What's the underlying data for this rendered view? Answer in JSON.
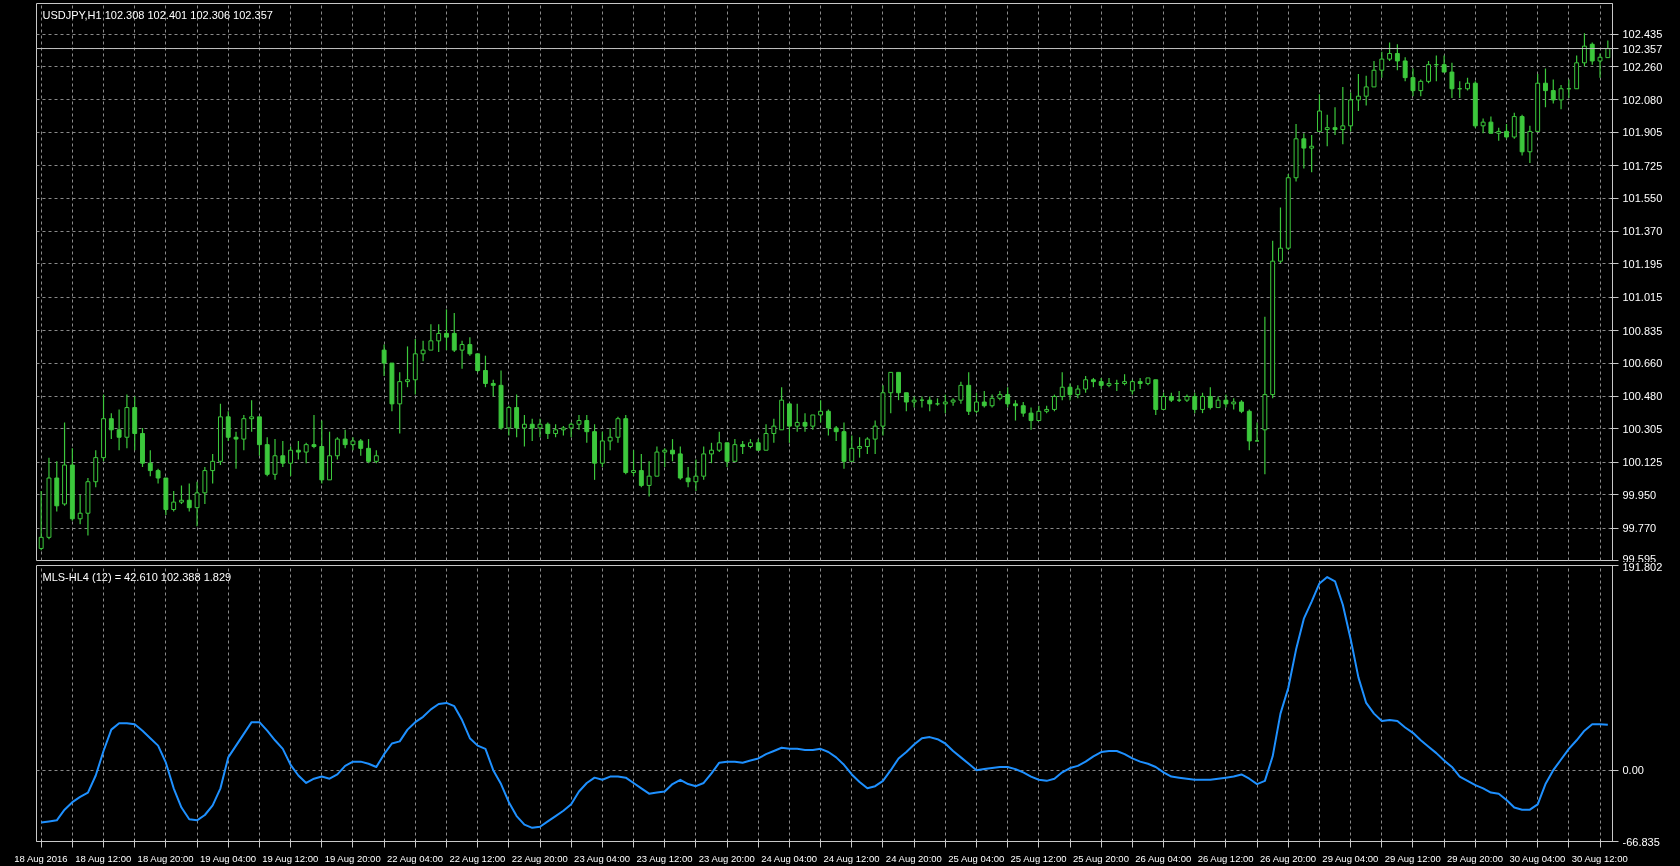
{
  "chart_data": [
    {
      "type": "candlestick",
      "title": "USDJPY,H1 102.308 102.401 102.306 102.357",
      "categories": [
        null,
        null,
        null,
        null,
        null,
        null,
        null,
        null,
        null,
        null,
        null,
        null,
        null,
        null,
        null,
        null,
        null,
        null,
        null,
        null,
        null,
        null,
        null,
        null,
        null,
        null,
        null,
        null,
        null,
        null,
        null,
        null,
        null,
        null,
        null,
        null,
        null,
        null,
        null,
        null,
        null,
        null,
        null,
        null,
        null,
        null,
        null,
        null,
        null,
        null,
        null,
        null,
        null,
        null,
        null,
        null,
        null,
        null,
        null,
        null,
        null,
        null,
        null,
        null,
        null,
        null,
        null,
        null,
        null,
        null,
        null,
        null,
        null,
        null,
        null,
        null,
        null,
        null,
        null,
        null,
        null,
        null,
        null,
        null,
        null,
        null,
        null,
        null,
        null,
        null,
        null,
        null,
        null,
        null,
        null,
        null,
        null,
        null,
        null,
        null,
        null,
        null,
        null,
        null,
        null,
        null,
        null,
        null,
        null,
        null,
        null,
        null,
        null,
        null,
        null,
        null,
        null,
        null,
        null,
        null,
        null,
        null,
        null,
        null,
        null,
        null,
        null,
        null,
        null,
        null,
        null,
        null,
        null,
        null,
        null,
        null,
        null,
        null,
        null,
        null,
        null,
        null,
        null,
        null,
        null,
        null,
        null,
        null,
        null,
        null,
        null,
        null,
        null,
        null,
        null,
        null,
        null,
        null,
        null,
        null,
        null,
        null,
        null,
        null,
        null,
        null,
        null,
        null,
        null,
        null,
        null,
        null,
        null,
        null,
        null,
        null,
        null,
        null,
        null,
        null,
        null,
        null,
        null,
        null,
        null,
        null,
        null,
        null,
        null,
        null,
        null,
        null,
        null,
        null,
        null,
        null,
        null,
        null,
        null,
        null,
        null,
        null
      ],
      "series": [
        {
          "color": "#3cc83c",
          "ohlc": [
            [
              99.66,
              99.97,
              99.65,
              99.72
            ],
            [
              99.72,
              100.15,
              99.71,
              100.04
            ],
            [
              100.04,
              100.13,
              99.86,
              99.89
            ],
            [
              99.9,
              100.34,
              99.89,
              100.11
            ],
            [
              100.11,
              100.2,
              99.81,
              99.82
            ],
            [
              99.82,
              99.95,
              99.79,
              99.85
            ],
            [
              99.85,
              100.04,
              99.73,
              100.02
            ],
            [
              100.02,
              100.19,
              99.99,
              100.15
            ],
            [
              100.15,
              100.49,
              100.13,
              100.36
            ],
            [
              100.36,
              100.39,
              100.25,
              100.3
            ],
            [
              100.3,
              100.41,
              100.19,
              100.26
            ],
            [
              100.26,
              100.49,
              100.2,
              100.42
            ],
            [
              100.42,
              100.48,
              100.19,
              100.28
            ],
            [
              100.28,
              100.31,
              100.1,
              100.12
            ],
            [
              100.12,
              100.19,
              100.05,
              100.08
            ],
            [
              100.08,
              100.09,
              100.01,
              100.04
            ],
            [
              100.04,
              100.04,
              99.84,
              99.87
            ],
            [
              99.87,
              99.97,
              99.86,
              99.91
            ],
            [
              99.91,
              100.0,
              99.9,
              99.92
            ],
            [
              99.92,
              100.01,
              99.86,
              99.88
            ],
            [
              99.88,
              100.02,
              99.78,
              99.96
            ],
            [
              99.96,
              100.1,
              99.9,
              100.08
            ],
            [
              100.08,
              100.17,
              100.01,
              100.13
            ],
            [
              100.13,
              100.44,
              100.11,
              100.37
            ],
            [
              100.37,
              100.4,
              100.24,
              100.26
            ],
            [
              100.26,
              100.29,
              100.09,
              100.25
            ],
            [
              100.25,
              100.38,
              100.19,
              100.36
            ],
            [
              100.36,
              100.46,
              100.29,
              100.37
            ],
            [
              100.37,
              100.37,
              100.16,
              100.22
            ],
            [
              100.22,
              100.26,
              100.05,
              100.06
            ],
            [
              100.06,
              100.25,
              100.03,
              100.16
            ],
            [
              100.16,
              100.24,
              100.1,
              100.12
            ],
            [
              100.12,
              100.21,
              100.05,
              100.19
            ],
            [
              100.19,
              100.24,
              100.14,
              100.18
            ],
            [
              100.18,
              100.23,
              100.12,
              100.22
            ],
            [
              100.22,
              100.38,
              100.2,
              100.21
            ],
            [
              100.21,
              100.35,
              100.01,
              100.03
            ],
            [
              100.03,
              100.29,
              100.03,
              100.16
            ],
            [
              100.16,
              100.26,
              100.14,
              100.25
            ],
            [
              100.25,
              100.3,
              100.2,
              100.22
            ],
            [
              100.22,
              100.26,
              100.19,
              100.24
            ],
            [
              100.24,
              100.25,
              100.16,
              100.2
            ],
            [
              100.2,
              100.25,
              100.12,
              100.13
            ],
            [
              100.13,
              100.19,
              100.12,
              100.16
            ],
            [
              100.73,
              100.76,
              100.59,
              100.66
            ],
            [
              100.66,
              100.66,
              100.4,
              100.44
            ],
            [
              100.44,
              100.61,
              100.28,
              100.56
            ],
            [
              100.56,
              100.75,
              100.53,
              100.57
            ],
            [
              100.57,
              100.79,
              100.49,
              100.71
            ],
            [
              100.71,
              100.78,
              100.67,
              100.73
            ],
            [
              100.73,
              100.87,
              100.73,
              100.78
            ],
            [
              100.78,
              100.87,
              100.72,
              100.82
            ],
            [
              100.82,
              100.95,
              100.73,
              100.8
            ],
            [
              100.82,
              100.93,
              100.72,
              100.73
            ],
            [
              100.73,
              100.78,
              100.63,
              100.76
            ],
            [
              100.76,
              100.8,
              100.7,
              100.71
            ],
            [
              100.71,
              100.71,
              100.61,
              100.62
            ],
            [
              100.62,
              100.7,
              100.53,
              100.55
            ],
            [
              100.55,
              100.57,
              100.48,
              100.54
            ],
            [
              100.54,
              100.62,
              100.3,
              100.31
            ],
            [
              100.31,
              100.43,
              100.27,
              100.42
            ],
            [
              100.42,
              100.49,
              100.26,
              100.31
            ],
            [
              100.31,
              100.38,
              100.21,
              100.33
            ],
            [
              100.33,
              100.36,
              100.24,
              100.31
            ],
            [
              100.31,
              100.36,
              100.26,
              100.33
            ],
            [
              100.33,
              100.34,
              100.25,
              100.28
            ],
            [
              100.28,
              100.33,
              100.26,
              100.3
            ],
            [
              100.3,
              100.32,
              100.27,
              100.31
            ],
            [
              100.31,
              100.34,
              100.26,
              100.33
            ],
            [
              100.33,
              100.38,
              100.3,
              100.35
            ],
            [
              100.35,
              100.38,
              100.23,
              100.29
            ],
            [
              100.29,
              100.33,
              100.03,
              100.12
            ],
            [
              100.12,
              100.29,
              100.1,
              100.24
            ],
            [
              100.24,
              100.31,
              100.19,
              100.26
            ],
            [
              100.26,
              100.37,
              100.23,
              100.36
            ],
            [
              100.36,
              100.38,
              100.06,
              100.07
            ],
            [
              100.07,
              100.19,
              100.05,
              100.08
            ],
            [
              100.08,
              100.17,
              99.99,
              100.0
            ],
            [
              100.0,
              100.13,
              99.94,
              100.05
            ],
            [
              100.05,
              100.21,
              100.05,
              100.18
            ],
            [
              100.18,
              100.2,
              100.1,
              100.19
            ],
            [
              100.19,
              100.25,
              100.13,
              100.17
            ],
            [
              100.17,
              100.21,
              100.03,
              100.04
            ],
            [
              100.04,
              100.1,
              99.99,
              100.02
            ],
            [
              100.02,
              100.14,
              99.97,
              100.05
            ],
            [
              100.05,
              100.21,
              100.03,
              100.17
            ],
            [
              100.17,
              100.23,
              100.12,
              100.19
            ],
            [
              100.19,
              100.29,
              100.18,
              100.23
            ],
            [
              100.23,
              100.23,
              100.1,
              100.13
            ],
            [
              100.13,
              100.25,
              100.13,
              100.22
            ],
            [
              100.22,
              100.24,
              100.17,
              100.21
            ],
            [
              100.21,
              100.25,
              100.2,
              100.23
            ],
            [
              100.23,
              100.25,
              100.19,
              100.19
            ],
            [
              100.19,
              100.33,
              100.19,
              100.28
            ],
            [
              100.28,
              100.36,
              100.23,
              100.32
            ],
            [
              100.3,
              100.53,
              100.3,
              100.46
            ],
            [
              100.44,
              100.44,
              100.23,
              100.32
            ],
            [
              100.32,
              100.44,
              100.29,
              100.34
            ],
            [
              100.34,
              100.39,
              100.29,
              100.32
            ],
            [
              100.32,
              100.38,
              100.3,
              100.38
            ],
            [
              100.38,
              100.46,
              100.34,
              100.4
            ],
            [
              100.4,
              100.41,
              100.27,
              100.31
            ],
            [
              100.31,
              100.32,
              100.24,
              100.29
            ],
            [
              100.29,
              100.34,
              100.09,
              100.13
            ],
            [
              100.13,
              100.27,
              100.13,
              100.2
            ],
            [
              100.2,
              100.26,
              100.15,
              100.21
            ],
            [
              100.21,
              100.26,
              100.17,
              100.25
            ],
            [
              100.25,
              100.35,
              100.17,
              100.32
            ],
            [
              100.32,
              100.54,
              100.27,
              100.5
            ],
            [
              100.5,
              100.61,
              100.39,
              100.61
            ],
            [
              100.61,
              100.61,
              100.46,
              100.5
            ],
            [
              100.5,
              100.5,
              100.4,
              100.45
            ],
            [
              100.45,
              100.48,
              100.42,
              100.46
            ],
            [
              100.46,
              100.48,
              100.42,
              100.46
            ],
            [
              100.46,
              100.48,
              100.4,
              100.44
            ],
            [
              100.44,
              100.47,
              100.43,
              100.44
            ],
            [
              100.44,
              100.49,
              100.39,
              100.45
            ],
            [
              100.45,
              100.47,
              100.43,
              100.46
            ],
            [
              100.46,
              100.56,
              100.44,
              100.54
            ],
            [
              100.54,
              100.61,
              100.38,
              100.4
            ],
            [
              100.4,
              100.5,
              100.39,
              100.45
            ],
            [
              100.45,
              100.51,
              100.42,
              100.43
            ],
            [
              100.43,
              100.49,
              100.42,
              100.47
            ],
            [
              100.47,
              100.51,
              100.46,
              100.49
            ],
            [
              100.49,
              100.53,
              100.42,
              100.44
            ],
            [
              100.44,
              100.46,
              100.35,
              100.43
            ],
            [
              100.43,
              100.45,
              100.37,
              100.39
            ],
            [
              100.39,
              100.42,
              100.3,
              100.35
            ],
            [
              100.35,
              100.43,
              100.35,
              100.4
            ],
            [
              100.4,
              100.43,
              100.39,
              100.41
            ],
            [
              100.41,
              100.49,
              100.4,
              100.48
            ],
            [
              100.48,
              100.61,
              100.46,
              100.53
            ],
            [
              100.53,
              100.55,
              100.46,
              100.49
            ],
            [
              100.49,
              100.54,
              100.47,
              100.52
            ],
            [
              100.52,
              100.59,
              100.5,
              100.57
            ],
            [
              100.57,
              100.58,
              100.53,
              100.56
            ],
            [
              100.56,
              100.58,
              100.52,
              100.54
            ],
            [
              100.54,
              100.58,
              100.53,
              100.55
            ],
            [
              100.55,
              100.57,
              100.51,
              100.55
            ],
            [
              100.55,
              100.6,
              100.54,
              100.56
            ],
            [
              100.51,
              100.57,
              100.49,
              100.56
            ],
            [
              100.56,
              100.58,
              100.52,
              100.55
            ],
            [
              100.55,
              100.58,
              100.54,
              100.58
            ],
            [
              100.57,
              100.57,
              100.38,
              100.41
            ],
            [
              100.41,
              100.5,
              100.41,
              100.48
            ],
            [
              100.48,
              100.5,
              100.45,
              100.46
            ],
            [
              100.46,
              100.51,
              100.45,
              100.46
            ],
            [
              100.46,
              100.49,
              100.45,
              100.48
            ],
            [
              100.48,
              100.5,
              100.39,
              100.41
            ],
            [
              100.41,
              100.5,
              100.39,
              100.48
            ],
            [
              100.48,
              100.53,
              100.41,
              100.42
            ],
            [
              100.42,
              100.48,
              100.42,
              100.46
            ],
            [
              100.46,
              100.49,
              100.42,
              100.44
            ],
            [
              100.44,
              100.47,
              100.41,
              100.45
            ],
            [
              100.45,
              100.46,
              100.39,
              100.4
            ],
            [
              100.4,
              100.41,
              100.19,
              100.24
            ],
            [
              100.24,
              100.34,
              100.24,
              100.24
            ],
            [
              100.3,
              100.91,
              100.06,
              100.49
            ],
            [
              100.49,
              101.32,
              100.47,
              101.21
            ],
            [
              101.21,
              101.5,
              101.2,
              101.28
            ],
            [
              101.28,
              101.68,
              101.27,
              101.66
            ],
            [
              101.66,
              101.95,
              101.64,
              101.87
            ],
            [
              101.87,
              101.9,
              101.71,
              101.82
            ],
            [
              101.82,
              101.89,
              101.69,
              101.83
            ],
            [
              101.91,
              102.11,
              101.91,
              102.02
            ],
            [
              101.92,
              102.0,
              101.83,
              101.93
            ],
            [
              101.93,
              102.04,
              101.89,
              101.92
            ],
            [
              101.92,
              102.15,
              101.84,
              101.94
            ],
            [
              101.94,
              102.12,
              101.91,
              102.08
            ],
            [
              102.08,
              102.22,
              102.02,
              102.1
            ],
            [
              102.1,
              102.21,
              102.05,
              102.15
            ],
            [
              102.15,
              102.29,
              102.15,
              102.24
            ],
            [
              102.24,
              102.34,
              102.2,
              102.3
            ],
            [
              102.3,
              102.39,
              102.29,
              102.33
            ],
            [
              102.33,
              102.38,
              102.24,
              102.29
            ],
            [
              102.29,
              102.31,
              102.18,
              102.2
            ],
            [
              102.2,
              102.25,
              102.1,
              102.13
            ],
            [
              102.13,
              102.19,
              102.1,
              102.18
            ],
            [
              102.18,
              102.29,
              102.17,
              102.27
            ],
            [
              102.27,
              102.32,
              102.18,
              102.27
            ],
            [
              102.27,
              102.32,
              102.23,
              102.23
            ],
            [
              102.23,
              102.28,
              102.09,
              102.14
            ],
            [
              102.14,
              102.18,
              102.09,
              102.14
            ],
            [
              102.14,
              102.2,
              102.13,
              102.17
            ],
            [
              102.17,
              102.18,
              101.93,
              101.94
            ],
            [
              101.94,
              101.98,
              101.9,
              101.96
            ],
            [
              101.96,
              101.99,
              101.9,
              101.9
            ],
            [
              101.9,
              101.93,
              101.86,
              101.91
            ],
            [
              101.91,
              101.95,
              101.87,
              101.88
            ],
            [
              101.88,
              102.01,
              101.87,
              101.99
            ],
            [
              101.99,
              102.0,
              101.78,
              101.8
            ],
            [
              101.8,
              101.94,
              101.74,
              101.91
            ],
            [
              101.91,
              102.22,
              101.91,
              102.17
            ],
            [
              102.17,
              102.25,
              102.04,
              102.13
            ],
            [
              102.13,
              102.19,
              102.06,
              102.08
            ],
            [
              102.08,
              102.16,
              102.03,
              102.14
            ],
            [
              102.14,
              102.19,
              102.09,
              102.14
            ],
            [
              102.14,
              102.32,
              102.14,
              102.28
            ],
            [
              102.28,
              102.44,
              102.26,
              102.37
            ],
            [
              102.38,
              102.39,
              102.27,
              102.29
            ],
            [
              102.29,
              102.33,
              102.2,
              102.31
            ],
            [
              102.308,
              102.401,
              102.306,
              102.357
            ]
          ]
        }
      ],
      "ylim": [
        99.595,
        102.6
      ],
      "yticks": [
        {
          "value": 99.595,
          "label": "99.595"
        },
        {
          "value": 99.77,
          "label": "99.770"
        },
        {
          "value": 99.95,
          "label": "99.950"
        },
        {
          "value": 100.125,
          "label": "100.125"
        },
        {
          "value": 100.305,
          "label": "100.305"
        },
        {
          "value": 100.48,
          "label": "100.480"
        },
        {
          "value": 100.66,
          "label": "100.660"
        },
        {
          "value": 100.835,
          "label": "100.835"
        },
        {
          "value": 101.015,
          "label": "101.015"
        },
        {
          "value": 101.195,
          "label": "101.195"
        },
        {
          "value": 101.37,
          "label": "101.370"
        },
        {
          "value": 101.55,
          "label": "101.550"
        },
        {
          "value": 101.725,
          "label": "101.725"
        },
        {
          "value": 101.905,
          "label": "101.905"
        },
        {
          "value": 102.08,
          "label": "102.080"
        },
        {
          "value": 102.26,
          "label": "102.260"
        },
        {
          "value": 102.435,
          "label": "102.435"
        }
      ],
      "ref_lines": [
        {
          "axis": "y",
          "value": 102.357,
          "label": "102.357",
          "color": "#c0c0c0"
        }
      ],
      "grid": true,
      "tick_labels": "y"
    },
    {
      "type": "line",
      "title": "MLS-HL4 (12) = 42.610 102.388 1.829",
      "categories": [
        "18 Aug 2016",
        null,
        null,
        null,
        null,
        null,
        null,
        null,
        "18 Aug 12:00",
        null,
        null,
        null,
        null,
        null,
        null,
        null,
        "18 Aug 20:00",
        null,
        null,
        null,
        null,
        null,
        null,
        null,
        "19 Aug 04:00",
        null,
        null,
        null,
        null,
        null,
        null,
        null,
        "19 Aug 12:00",
        null,
        null,
        null,
        null,
        null,
        null,
        null,
        "19 Aug 20:00",
        null,
        null,
        null,
        null,
        null,
        null,
        null,
        "22 Aug 04:00",
        null,
        null,
        null,
        null,
        null,
        null,
        null,
        "22 Aug 12:00",
        null,
        null,
        null,
        null,
        null,
        null,
        null,
        "22 Aug 20:00",
        null,
        null,
        null,
        null,
        null,
        null,
        null,
        "23 Aug 04:00",
        null,
        null,
        null,
        null,
        null,
        null,
        null,
        "23 Aug 12:00",
        null,
        null,
        null,
        null,
        null,
        null,
        null,
        "23 Aug 20:00",
        null,
        null,
        null,
        null,
        null,
        null,
        null,
        "24 Aug 04:00",
        null,
        null,
        null,
        null,
        null,
        null,
        null,
        "24 Aug 12:00",
        null,
        null,
        null,
        null,
        null,
        null,
        null,
        "24 Aug 20:00",
        null,
        null,
        null,
        null,
        null,
        null,
        null,
        "25 Aug 04:00",
        null,
        null,
        null,
        null,
        null,
        null,
        null,
        "25 Aug 12:00",
        null,
        null,
        null,
        null,
        null,
        null,
        null,
        "25 Aug 20:00",
        null,
        null,
        null,
        null,
        null,
        null,
        null,
        "26 Aug 04:00",
        null,
        null,
        null,
        null,
        null,
        null,
        null,
        "26 Aug 12:00",
        null,
        null,
        null,
        null,
        null,
        null,
        null,
        "26 Aug 20:00",
        null,
        null,
        null,
        null,
        null,
        null,
        null,
        "29 Aug 04:00",
        null,
        null,
        null,
        null,
        null,
        null,
        null,
        "29 Aug 12:00",
        null,
        null,
        null,
        null,
        null,
        null,
        null,
        "29 Aug 20:00",
        null,
        null,
        null,
        null,
        null,
        null,
        null,
        "30 Aug 04:00",
        null,
        null,
        null,
        null,
        null,
        null,
        null,
        "30 Aug 12:00",
        null
      ],
      "series": [
        {
          "color": "#1e90ff",
          "values": [
            -49,
            -48,
            -47,
            -37,
            -30,
            -25,
            -21,
            -5,
            18,
            38,
            44,
            44,
            43,
            37,
            30,
            23,
            7,
            -17,
            -35,
            -46,
            -47,
            -42,
            -33,
            -17,
            12,
            23,
            34,
            45,
            45,
            37,
            28,
            20,
            5,
            -5,
            -12,
            -8,
            -6,
            -8,
            -4,
            4,
            8,
            8,
            6,
            3,
            15,
            25,
            27,
            38,
            45,
            50,
            57,
            62,
            63,
            60,
            47,
            30,
            23,
            20,
            0,
            -13,
            -30,
            -43,
            -51,
            -54,
            -53,
            -48,
            -43,
            -38,
            -32,
            -20,
            -12,
            -7,
            -9,
            -6,
            -6,
            -7,
            -12,
            -17,
            -22,
            -21,
            -20,
            -13,
            -9,
            -13,
            -15,
            -12,
            -3,
            7,
            8,
            8,
            7,
            9,
            11,
            15,
            18,
            21,
            20,
            20,
            19,
            19,
            20,
            17,
            12,
            5,
            -4,
            -11,
            -17,
            -15,
            -10,
            0,
            11,
            17,
            24,
            30,
            31,
            29,
            25,
            18,
            12,
            6,
            0,
            1,
            2,
            3,
            3,
            1,
            -2,
            -6,
            -9,
            -10,
            -8,
            -2,
            2,
            4,
            8,
            13,
            17,
            18,
            18,
            15,
            11,
            8,
            6,
            3,
            -2,
            -6,
            -7,
            -8,
            -9,
            -9,
            -9,
            -8,
            -7,
            -6,
            -4,
            -8,
            -13,
            -10,
            13,
            53,
            77,
            113,
            142,
            158,
            175,
            181,
            177,
            155,
            123,
            87,
            63,
            53,
            46,
            47,
            46,
            40,
            35,
            28,
            22,
            16,
            9,
            3,
            -6,
            -10,
            -14,
            -17,
            -21,
            -22,
            -28,
            -35,
            -37,
            -37,
            -32,
            -13,
            0,
            10,
            20,
            28,
            37,
            43,
            43,
            42.61
          ]
        }
      ],
      "ylim": [
        -66.835,
        191.802
      ],
      "yticks": [
        {
          "value": 191.802,
          "label": "191.802"
        },
        {
          "value": 0,
          "label": "0.00"
        },
        {
          "value": -66.835,
          "label": "-66.835"
        }
      ],
      "grid": true
    }
  ]
}
